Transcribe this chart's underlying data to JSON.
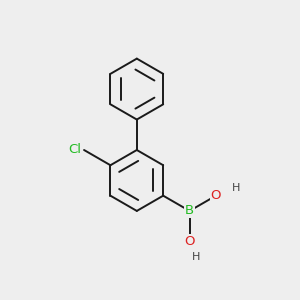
{
  "background_color": "#eeeeee",
  "bond_color": "#1a1a1a",
  "bond_width": 1.4,
  "atom_colors": {
    "Cl": "#22bb22",
    "B": "#22bb22",
    "O": "#dd2222",
    "H": "#444444"
  },
  "figsize": [
    3.0,
    3.0
  ],
  "dpi": 100
}
